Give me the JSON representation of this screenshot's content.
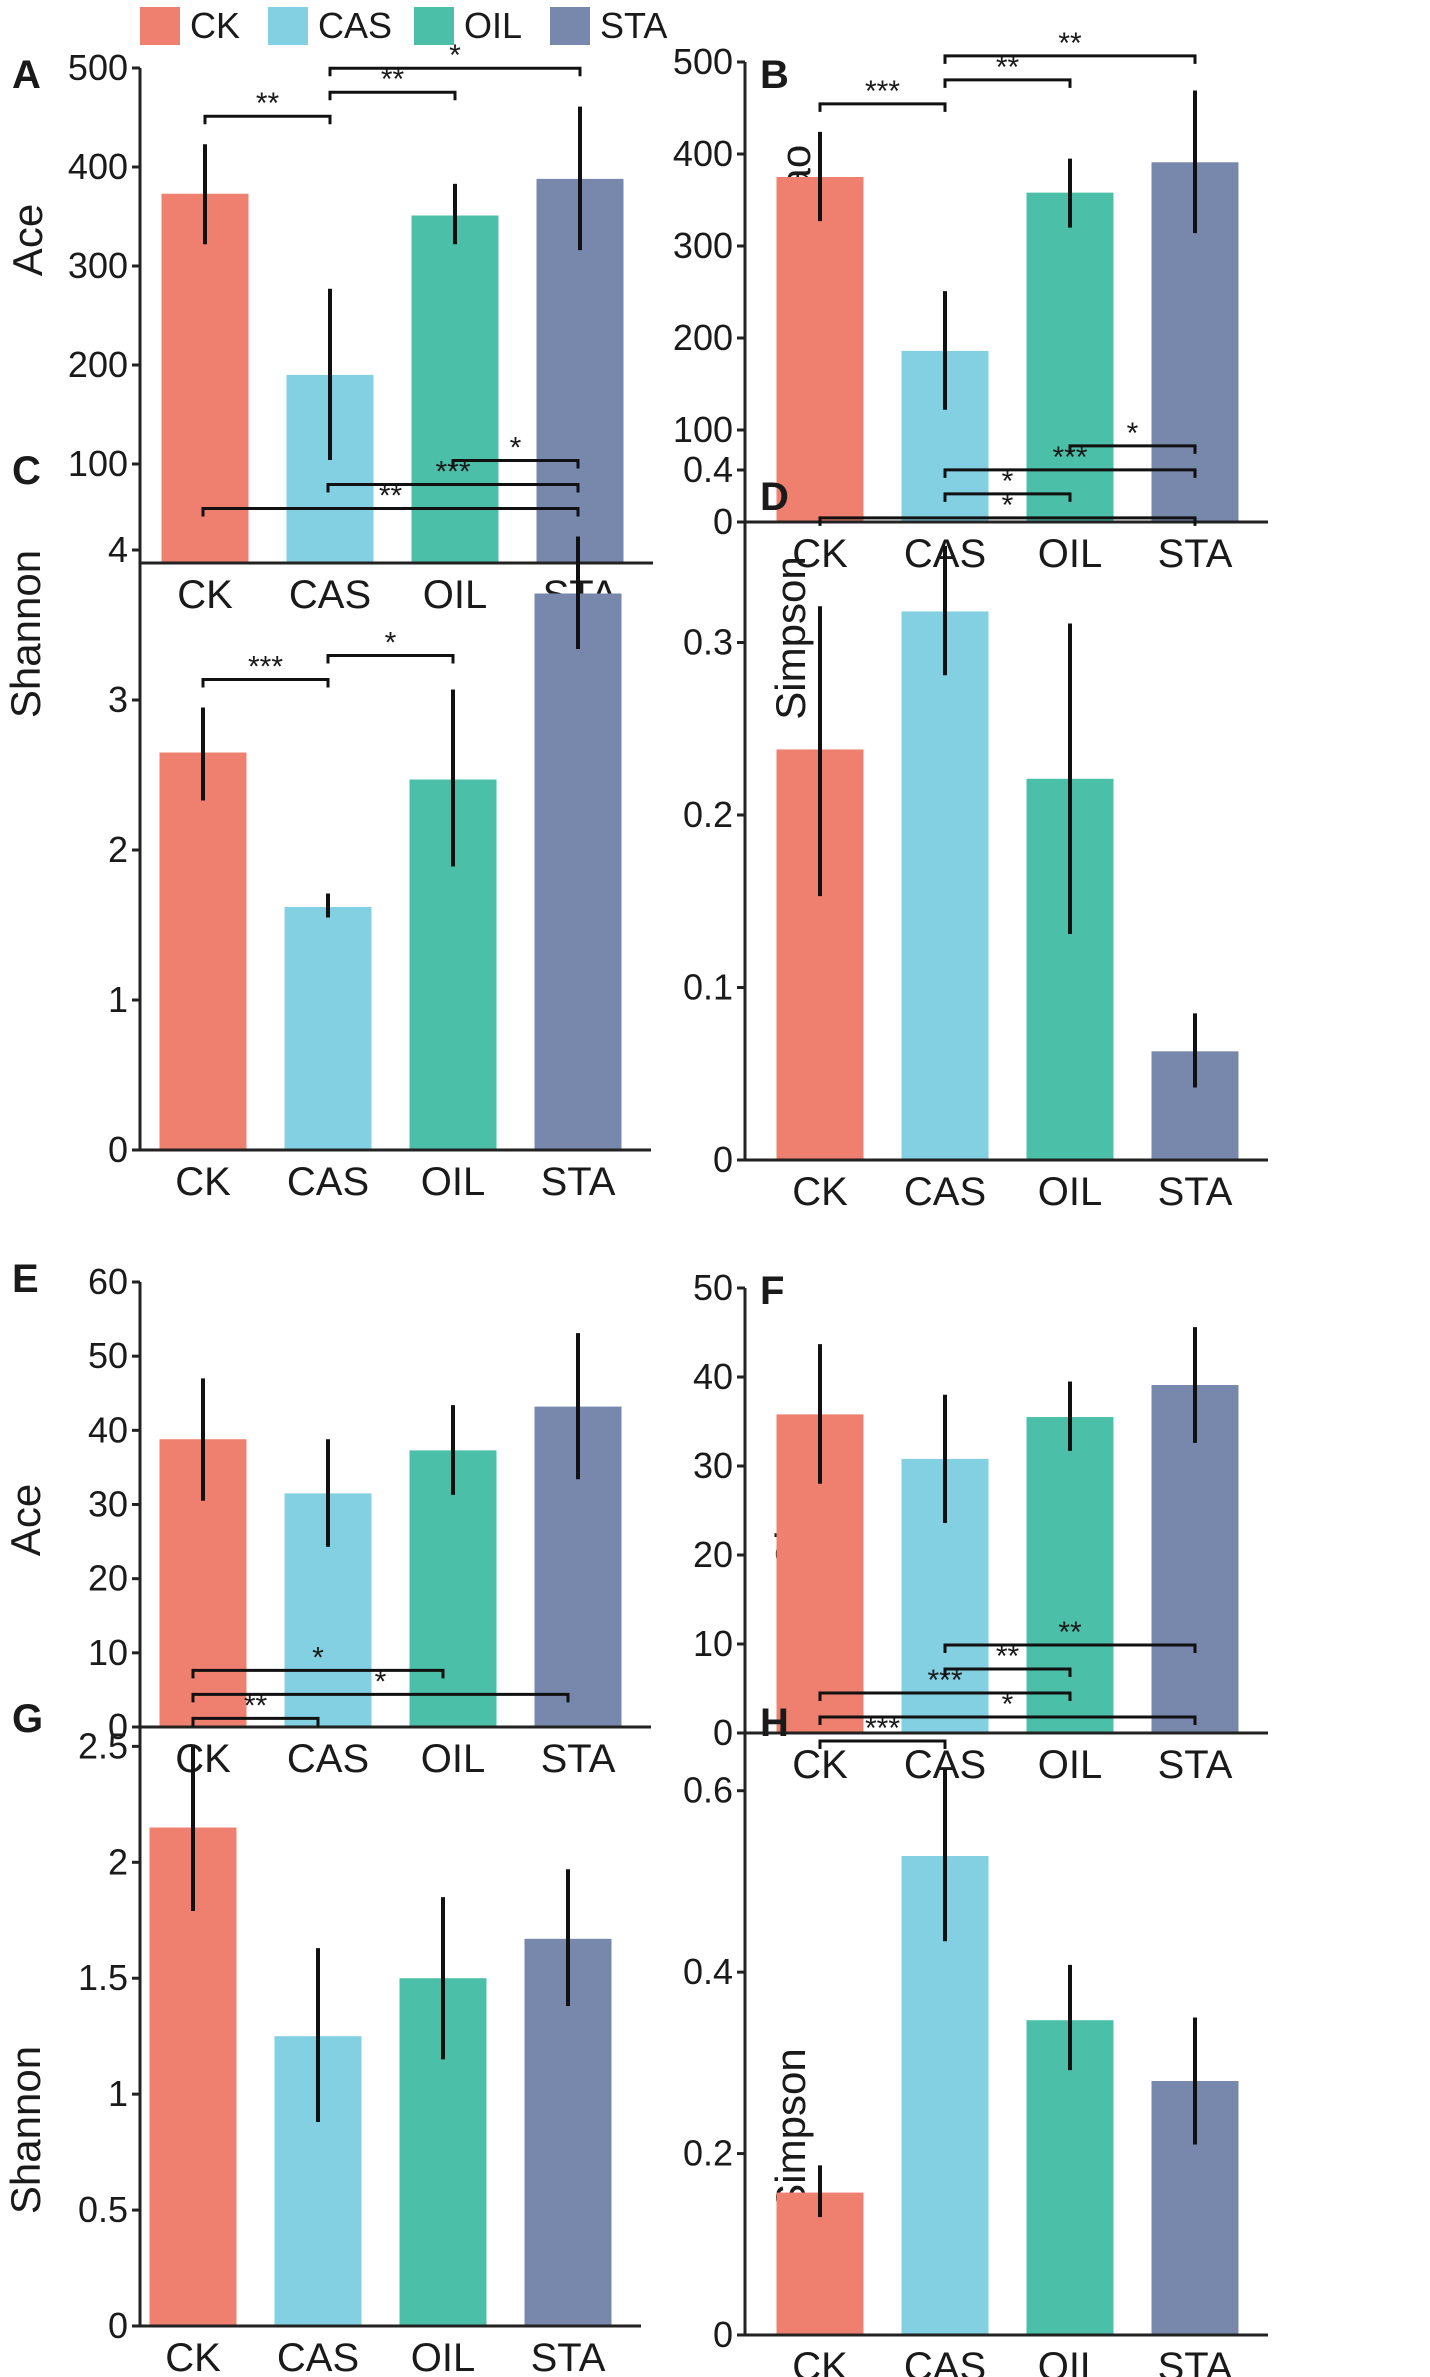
{
  "legend": [
    {
      "label": "CK",
      "color": "#ef8070"
    },
    {
      "label": "CAS",
      "color": "#82d0e2"
    },
    {
      "label": "OIL",
      "color": "#4cbfa8"
    },
    {
      "label": "STA",
      "color": "#7888ad"
    }
  ],
  "chart_data": [
    {
      "panel": "A",
      "type": "bar",
      "ylabel": "Ace",
      "categories": [
        "CK",
        "CAS",
        "OIL",
        "STA"
      ],
      "values": [
        373,
        190,
        351,
        388
      ],
      "errors": [
        [
          322,
          423
        ],
        [
          104,
          277
        ],
        [
          322,
          383
        ],
        [
          316,
          461
        ]
      ],
      "ytick_labels": [
        "100",
        "200",
        "300",
        "400",
        "500"
      ],
      "ytick_values": [
        100,
        200,
        300,
        400,
        500
      ],
      "ylim": [
        0,
        500
      ],
      "significance": [
        {
          "from": 0,
          "to": 1,
          "label": "**"
        },
        {
          "from": 1,
          "to": 2,
          "label": "**"
        },
        {
          "from": 1,
          "to": 3,
          "label": "*"
        }
      ]
    },
    {
      "panel": "B",
      "type": "bar",
      "ylabel": "Chao",
      "categories": [
        "CK",
        "CAS",
        "OIL",
        "STA"
      ],
      "values": [
        375,
        186,
        358,
        391
      ],
      "errors": [
        [
          327,
          424
        ],
        [
          122,
          251
        ],
        [
          320,
          395
        ],
        [
          314,
          469
        ]
      ],
      "ytick_labels": [
        "0",
        "100",
        "200",
        "300",
        "400",
        "500"
      ],
      "ytick_values": [
        0,
        100,
        200,
        300,
        400,
        500
      ],
      "ylim": [
        0,
        500
      ],
      "significance": [
        {
          "from": 0,
          "to": 1,
          "label": "***"
        },
        {
          "from": 1,
          "to": 2,
          "label": "**"
        },
        {
          "from": 1,
          "to": 3,
          "label": "**"
        }
      ]
    },
    {
      "panel": "C",
      "type": "bar",
      "ylabel": "Shannon",
      "categories": [
        "CK",
        "CAS",
        "OIL",
        "STA"
      ],
      "values": [
        2.65,
        1.62,
        2.47,
        3.71
      ],
      "errors": [
        [
          2.33,
          2.95
        ],
        [
          1.55,
          1.71
        ],
        [
          1.89,
          3.07
        ],
        [
          3.34,
          4.09
        ]
      ],
      "ytick_labels": [
        "0",
        "1",
        "2",
        "3",
        "4"
      ],
      "ytick_values": [
        0,
        1,
        2,
        3,
        4
      ],
      "ylim": [
        0,
        4.6
      ],
      "significance": [
        {
          "from": 0,
          "to": 1,
          "label": "***"
        },
        {
          "from": 1,
          "to": 2,
          "label": "*"
        },
        {
          "from": 0,
          "to": 3,
          "label": "**"
        },
        {
          "from": 1,
          "to": 3,
          "label": "***"
        },
        {
          "from": 2,
          "to": 3,
          "label": "*"
        }
      ]
    },
    {
      "panel": "D",
      "type": "bar",
      "ylabel": "Simpson",
      "categories": [
        "CK",
        "CAS",
        "OIL",
        "STA"
      ],
      "values": [
        0.238,
        0.318,
        0.221,
        0.063
      ],
      "errors": [
        [
          0.153,
          0.321
        ],
        [
          0.281,
          0.356
        ],
        [
          0.131,
          0.311
        ],
        [
          0.042,
          0.085
        ]
      ],
      "ytick_labels": [
        "0",
        "0.1",
        "0.2",
        "0.3",
        "0.4"
      ],
      "ytick_values": [
        0,
        0.1,
        0.2,
        0.3,
        0.4
      ],
      "ylim": [
        0,
        0.4
      ],
      "significance": [
        {
          "from": 0,
          "to": 3,
          "label": "*"
        },
        {
          "from": 1,
          "to": 2,
          "label": "*"
        },
        {
          "from": 1,
          "to": 3,
          "label": "***"
        },
        {
          "from": 2,
          "to": 3,
          "label": "*"
        }
      ]
    },
    {
      "panel": "E",
      "type": "bar",
      "ylabel": "Ace",
      "categories": [
        "CK",
        "CAS",
        "OIL",
        "STA"
      ],
      "values": [
        38.8,
        31.5,
        37.3,
        43.2
      ],
      "errors": [
        [
          30.5,
          47.0
        ],
        [
          24.3,
          38.8
        ],
        [
          31.3,
          43.4
        ],
        [
          33.4,
          53.1
        ]
      ],
      "ytick_labels": [
        "0",
        "10",
        "20",
        "30",
        "40",
        "50",
        "60"
      ],
      "ytick_values": [
        0,
        10,
        20,
        30,
        40,
        50,
        60
      ],
      "ylim": [
        0,
        60
      ],
      "significance": []
    },
    {
      "panel": "F",
      "type": "bar",
      "ylabel": "Chao",
      "categories": [
        "CK",
        "CAS",
        "OIL",
        "STA"
      ],
      "values": [
        35.8,
        30.8,
        35.5,
        39.1
      ],
      "errors": [
        [
          28.0,
          43.7
        ],
        [
          23.6,
          38.0
        ],
        [
          31.7,
          39.5
        ],
        [
          32.6,
          45.6
        ]
      ],
      "ytick_labels": [
        "0",
        "10",
        "20",
        "30",
        "40",
        "50"
      ],
      "ytick_values": [
        0,
        10,
        20,
        30,
        40,
        50
      ],
      "ylim": [
        0,
        50
      ],
      "significance": []
    },
    {
      "panel": "G",
      "type": "bar",
      "ylabel": "Shannon",
      "categories": [
        "CK",
        "CAS",
        "OIL",
        "STA"
      ],
      "values": [
        2.15,
        1.25,
        1.5,
        1.67
      ],
      "errors": [
        [
          1.79,
          2.5
        ],
        [
          0.88,
          1.63
        ],
        [
          1.15,
          1.85
        ],
        [
          1.38,
          1.97
        ]
      ],
      "ytick_labels": [
        "0",
        "0.5",
        "1",
        "1.5",
        "2",
        "2.5"
      ],
      "ytick_values": [
        0,
        0.5,
        1,
        1.5,
        2,
        2.5
      ],
      "ylim": [
        0,
        2.7
      ],
      "significance": [
        {
          "from": 0,
          "to": 1,
          "label": "**"
        },
        {
          "from": 0,
          "to": 3,
          "label": "*"
        },
        {
          "from": 0,
          "to": 2,
          "label": "*"
        }
      ]
    },
    {
      "panel": "H",
      "type": "bar",
      "ylabel": "Simpson",
      "categories": [
        "CK",
        "CAS",
        "OIL",
        "STA"
      ],
      "values": [
        0.157,
        0.528,
        0.347,
        0.28
      ],
      "errors": [
        [
          0.13,
          0.187
        ],
        [
          0.434,
          0.624
        ],
        [
          0.292,
          0.408
        ],
        [
          0.21,
          0.35
        ]
      ],
      "ytick_labels": [
        "0",
        "0.2",
        "0.4",
        "0.6"
      ],
      "ytick_values": [
        0,
        0.2,
        0.4,
        0.6
      ],
      "ylim": [
        0,
        0.7
      ],
      "significance": [
        {
          "from": 0,
          "to": 1,
          "label": "***"
        },
        {
          "from": 0,
          "to": 3,
          "label": "*"
        },
        {
          "from": 0,
          "to": 2,
          "label": "***"
        },
        {
          "from": 1,
          "to": 2,
          "label": "**"
        },
        {
          "from": 1,
          "to": 3,
          "label": "**"
        }
      ]
    }
  ]
}
